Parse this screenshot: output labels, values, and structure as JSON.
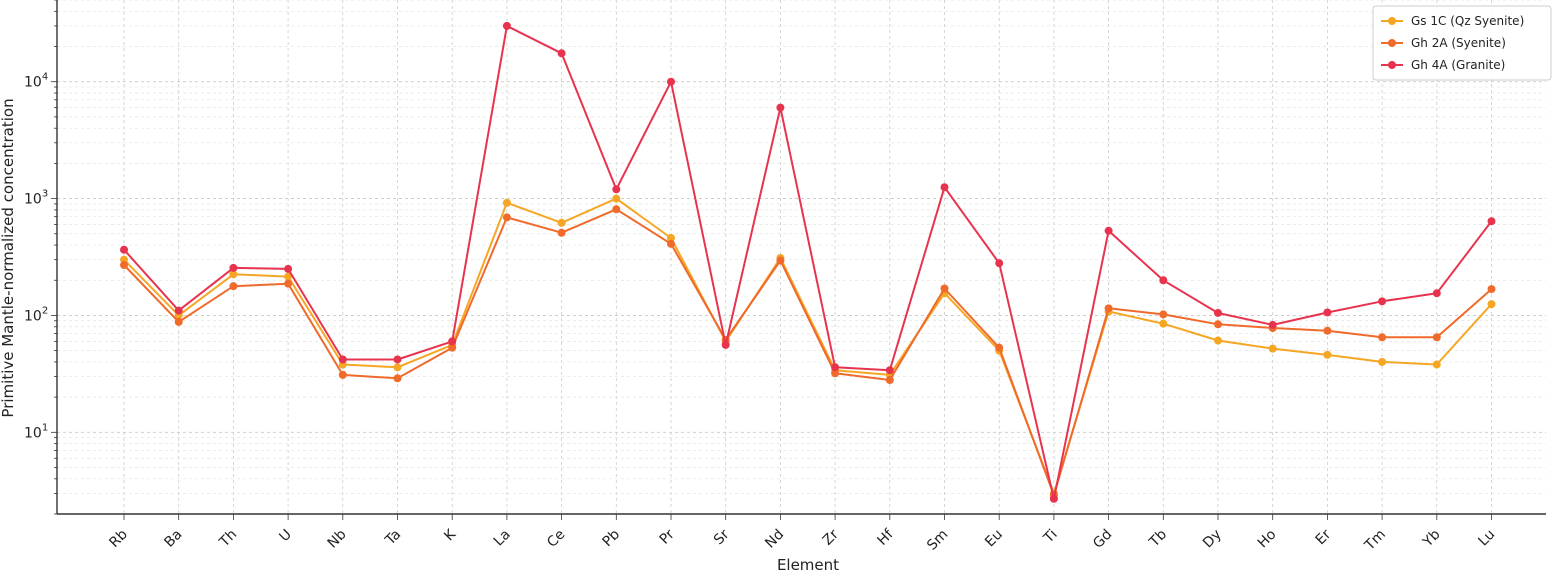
{
  "chart_data": {
    "type": "line",
    "title": "",
    "xlabel": "Element",
    "ylabel": "Primitive Mantle-normalized concentration",
    "yscale": "log",
    "ylim": [
      2,
      50000
    ],
    "yticks": [
      {
        "value": 10,
        "base": "10",
        "exp": "1"
      },
      {
        "value": 100,
        "base": "10",
        "exp": "2"
      },
      {
        "value": 1000,
        "base": "10",
        "exp": "3"
      },
      {
        "value": 10000,
        "base": "10",
        "exp": "4"
      }
    ],
    "grid": true,
    "legend_position": "top-right",
    "categories": [
      "Rb",
      "Ba",
      "Th",
      "U",
      "Nb",
      "Ta",
      "K",
      "La",
      "Ce",
      "Pb",
      "Pr",
      "Sr",
      "Nd",
      "Zr",
      "Hf",
      "Sm",
      "Eu",
      "Ti",
      "Gd",
      "Tb",
      "Dy",
      "Ho",
      "Er",
      "Tm",
      "Yb",
      "Lu"
    ],
    "series": [
      {
        "name": "Gs 1C (Qz Syenite)",
        "color": "#f5a623",
        "values": [
          300,
          100,
          225,
          215,
          38,
          36,
          56,
          920,
          620,
          1000,
          460,
          60,
          310,
          34,
          31,
          155,
          50,
          3,
          108,
          85,
          61,
          52,
          46,
          40,
          38,
          125
        ]
      },
      {
        "name": "Gh 2A (Syenite)",
        "color": "#f06a2b",
        "values": [
          270,
          88,
          178,
          187,
          31,
          29,
          53,
          690,
          510,
          810,
          410,
          62,
          295,
          32,
          28,
          170,
          53,
          2.9,
          115,
          102,
          84,
          78,
          74,
          65,
          65,
          168
        ]
      },
      {
        "name": "Gh 4A (Granite)",
        "color": "#e8334f",
        "values": [
          365,
          110,
          255,
          250,
          42,
          42,
          60,
          30000,
          17500,
          1200,
          10000,
          56,
          6000,
          36,
          34,
          1250,
          280,
          2.7,
          530,
          200,
          105,
          83,
          106,
          132,
          155,
          640
        ]
      }
    ]
  }
}
